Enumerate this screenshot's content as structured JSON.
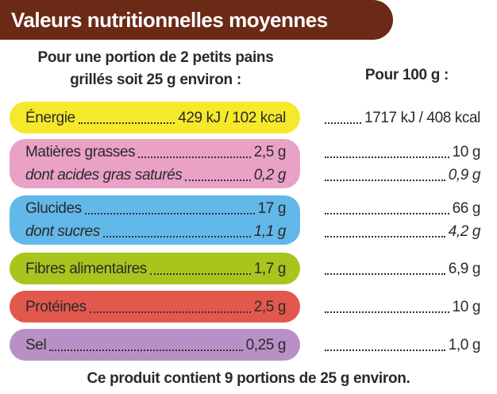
{
  "header": {
    "title": "Valeurs nutritionnelles moyennes"
  },
  "columns": {
    "per_portion": [
      "Pour une portion de 2 petits pains",
      "grillés soit 25 g environ  :"
    ],
    "per_100g": "Pour 100 g :"
  },
  "rows": [
    {
      "color": "#f6e82a",
      "lines": [
        {
          "label": "Énergie",
          "portion": "429 kJ / 102 kcal",
          "per_100g": "1717 kJ / 408 kcal"
        }
      ]
    },
    {
      "color": "#eaa1c6",
      "lines": [
        {
          "label": "Matières grasses",
          "portion": "2,5 g",
          "per_100g": "10 g"
        },
        {
          "label": "dont acides gras saturés",
          "portion": "0,2 g",
          "per_100g": "0,9 g"
        }
      ]
    },
    {
      "color": "#62b8e8",
      "lines": [
        {
          "label": "Glucides",
          "portion": "17 g",
          "per_100g": "66 g"
        },
        {
          "label": "dont sucres",
          "portion": "1,1 g",
          "per_100g": "4,2 g"
        }
      ]
    },
    {
      "color": "#a8c51e",
      "lines": [
        {
          "label": "Fibres alimentaires",
          "portion": "1,7 g",
          "per_100g": "6,9 g"
        }
      ]
    },
    {
      "color": "#e3584d",
      "lines": [
        {
          "label": "Protéines",
          "portion": "2,5 g",
          "per_100g": "10 g"
        }
      ]
    },
    {
      "color": "#b890c6",
      "lines": [
        {
          "label": "Sel",
          "portion": "0,25 g",
          "per_100g": "1,0 g"
        }
      ]
    }
  ],
  "footer": "Ce produit contient 9 portions de 25 g environ."
}
